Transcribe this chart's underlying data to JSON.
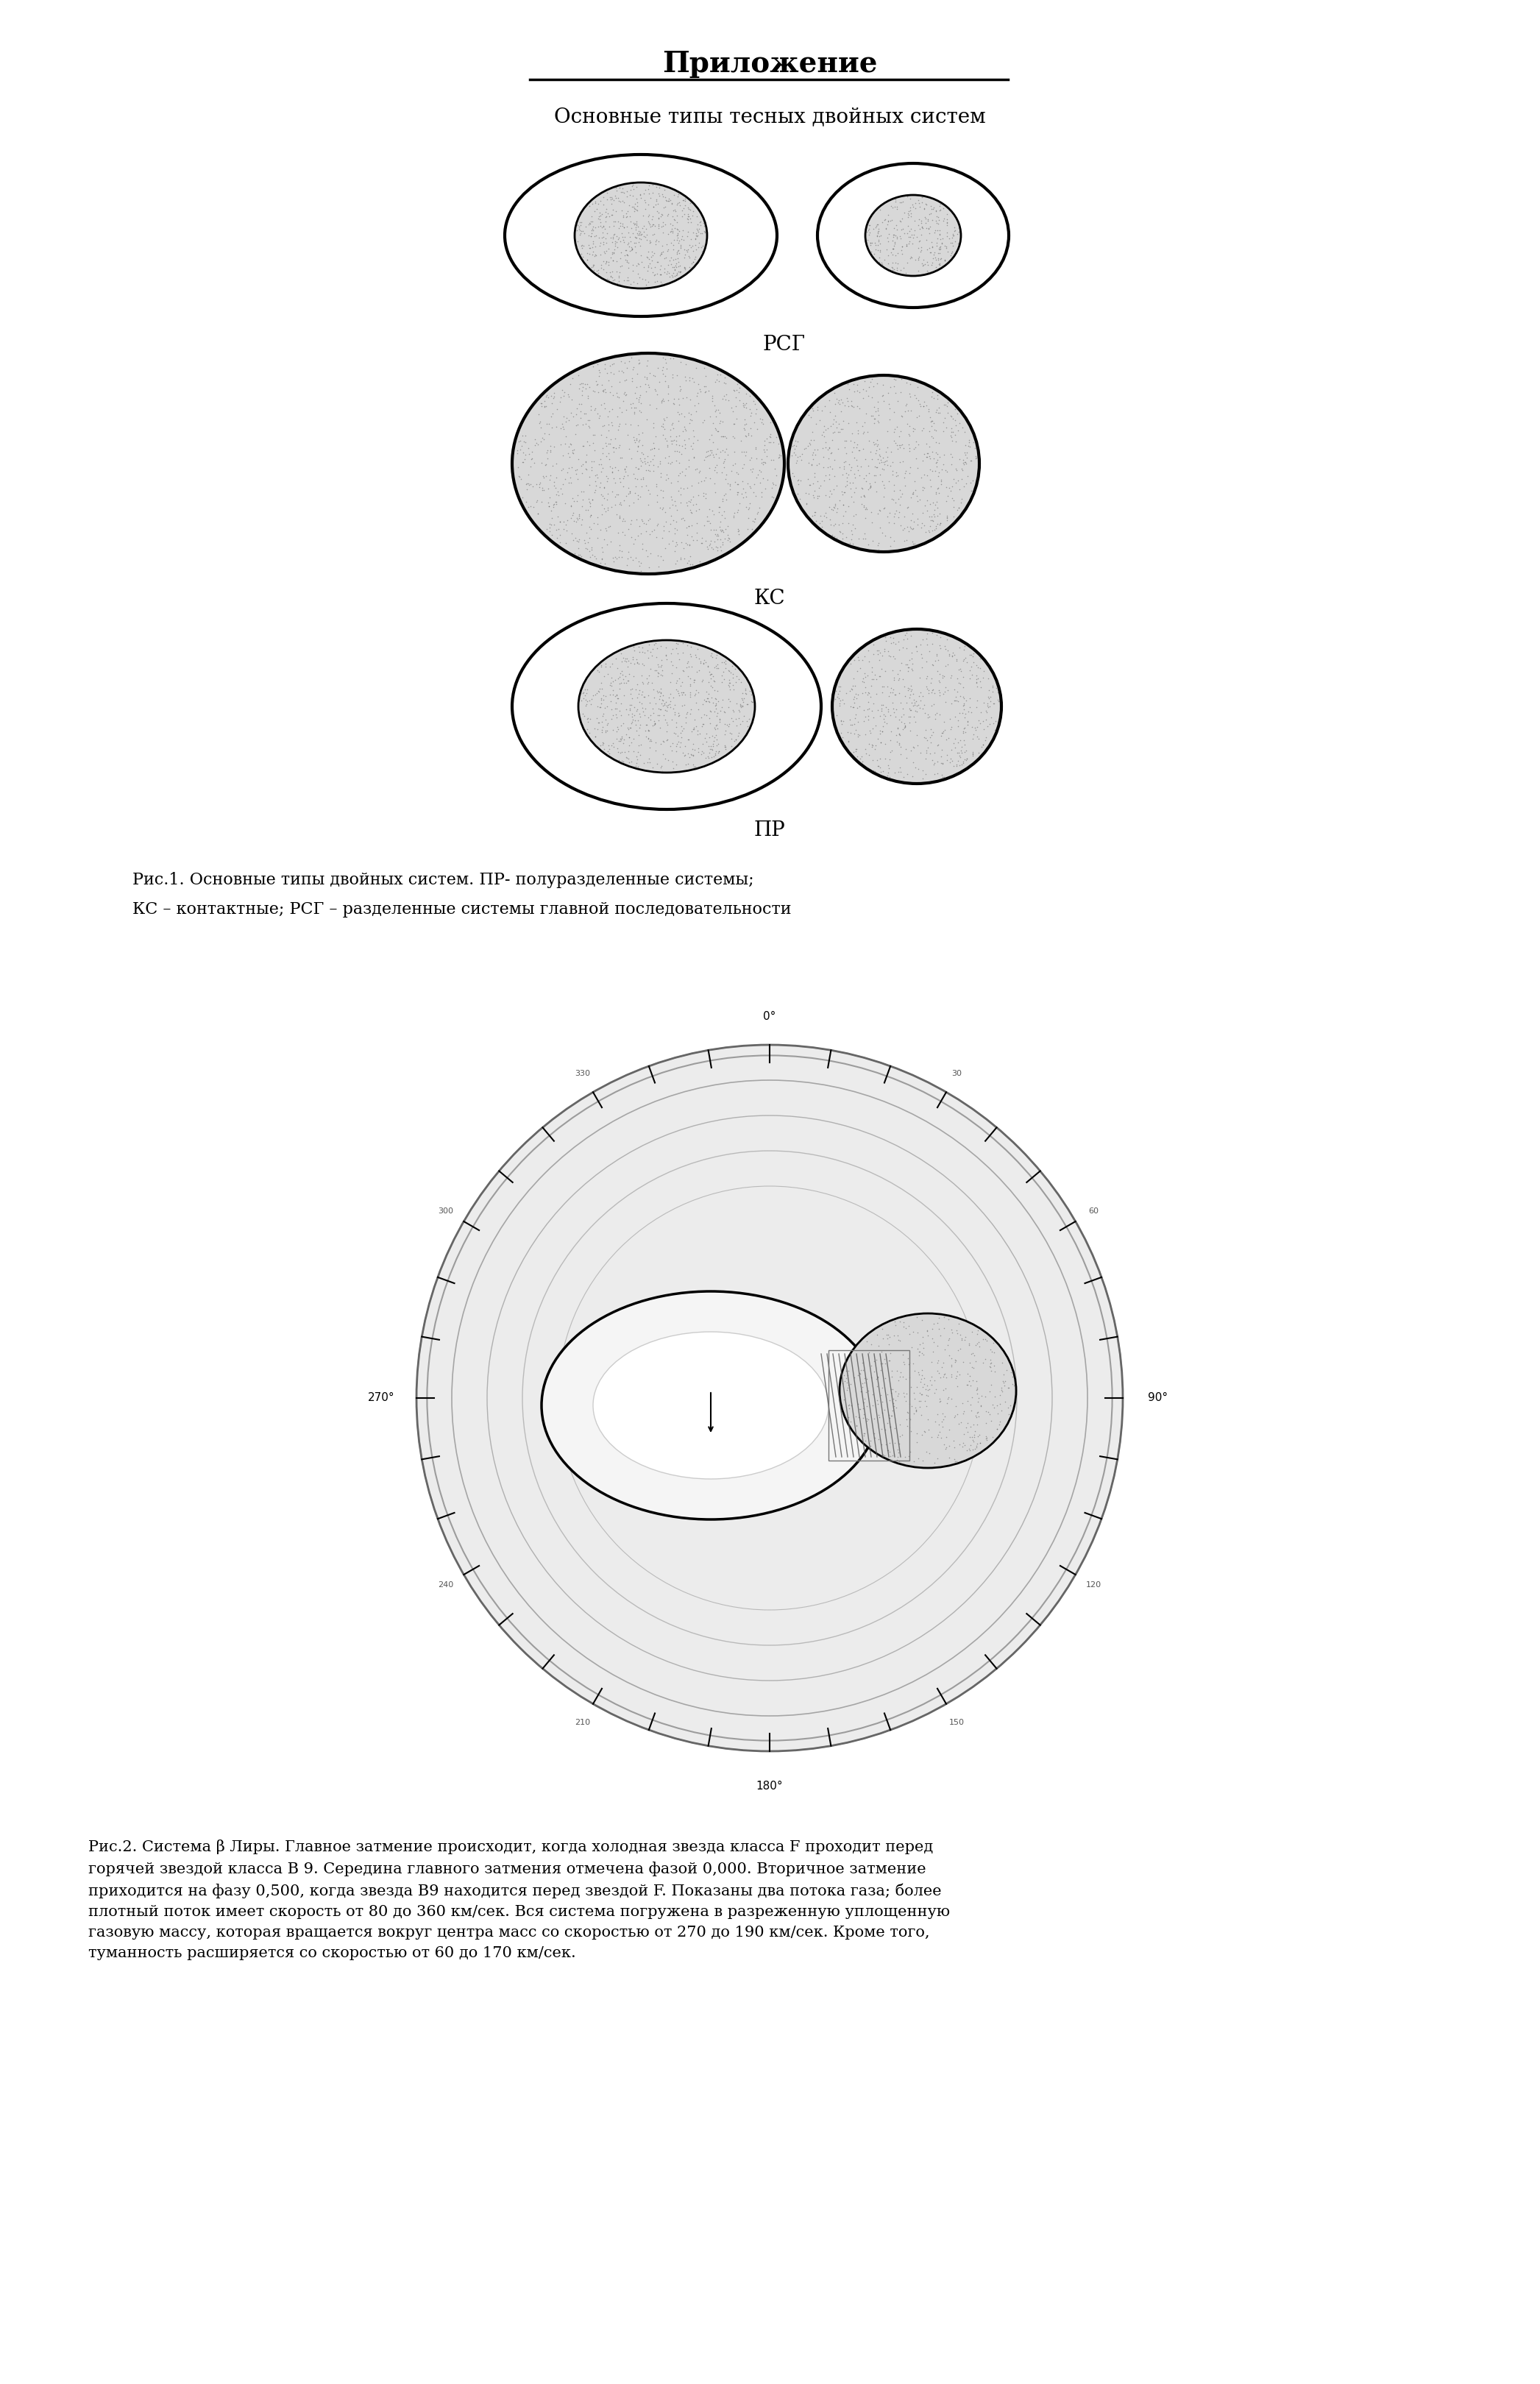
{
  "title": "Приложение",
  "subtitle": "Основные типы тесных двойных систем",
  "fig1_caption_line1": "Рис.1. Основные типы двойных систем. ПР- полуразделенные системы;",
  "fig1_caption_line2": "КС – контактные; РСГ – разделенные системы главной последовательности",
  "fig2_caption": "Рис.2. Система β Лиры. Главное затмение происходит, когда холодная звезда класса F проходит перед\nгорячей звездой класса В 9. Середина главного затмения отмечена фазой 0,000. Вторичное затмение\nприходится на фазу 0,500, когда звезда В9 находится перед звездой F. Показаны два потока газа; более\nплотный поток имеет скорость от 80 до 360 км/сек. Вся система погружена в разреженную уплощенную\nгазовую массу, которая вращается вокруг центра масс со скоростью от 270 до 190 км/сек. Кроме того,\nтуманность расширяется со скоростью от 60 до 170 км/сек.",
  "label_RSG": "РСГ",
  "label_KS": "КС",
  "label_PR": "ПР",
  "title_fontsize": 28,
  "subtitle_fontsize": 20,
  "label_fontsize": 20,
  "caption_fontsize": 16,
  "caption2_fontsize": 15
}
